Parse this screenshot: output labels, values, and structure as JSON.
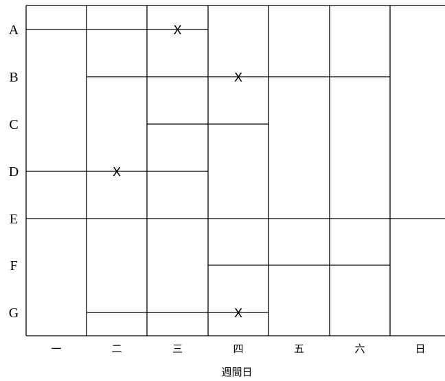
{
  "diagram": {
    "rows": [
      "A",
      "B",
      "C",
      "D",
      "E",
      "F",
      "G"
    ],
    "days": [
      "一",
      "二",
      "三",
      "四",
      "五",
      "六",
      "日"
    ],
    "axis_title": "週間日",
    "mark_symbol": "X",
    "marks": [
      {
        "row": "A",
        "day": "三"
      },
      {
        "row": "B",
        "day": "四"
      },
      {
        "row": "D",
        "day": "二"
      },
      {
        "row": "G",
        "day": "四"
      }
    ],
    "connections": [
      {
        "row": "A",
        "from_day": "一",
        "to_day": "三"
      },
      {
        "row": "B",
        "from_day": "二",
        "to_day": "六"
      },
      {
        "row": "C",
        "from_day": "三",
        "to_day": "四"
      },
      {
        "row": "D",
        "from_day": "一",
        "to_day": "三"
      },
      {
        "row": "E",
        "from_day": "一",
        "to_day": "日"
      },
      {
        "row": "F",
        "from_day": "四",
        "to_day": "六"
      },
      {
        "row": "G",
        "from_day": "二",
        "to_day": "四"
      }
    ]
  }
}
